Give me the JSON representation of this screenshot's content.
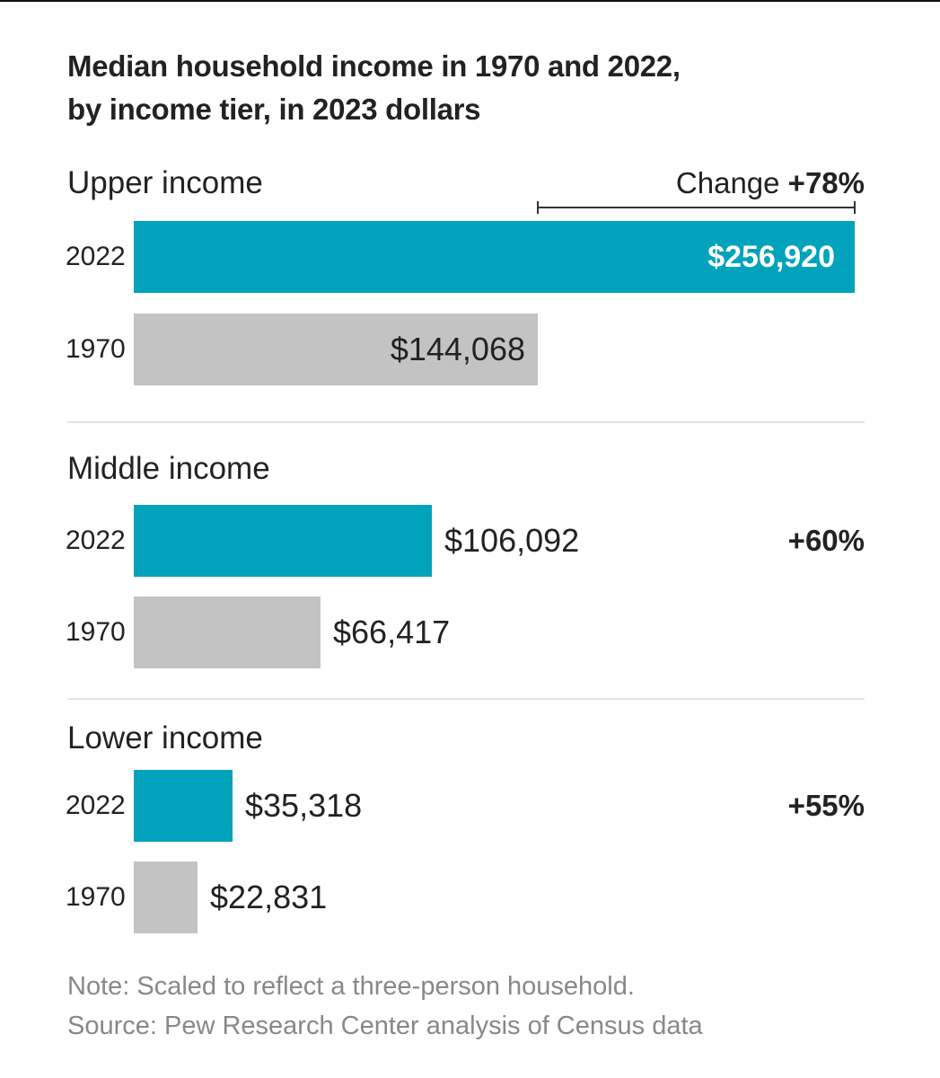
{
  "chart_data": {
    "type": "bar",
    "orientation": "horizontal",
    "title": "Median household income in 1970 and 2022,",
    "subtitle": "by income tier, in 2023 dollars",
    "change_heading": "Change",
    "groups": [
      {
        "name": "Upper income",
        "change": "+78%",
        "bars": [
          {
            "year": "2022",
            "value": 256920,
            "label": "$256,920"
          },
          {
            "year": "1970",
            "value": 144068,
            "label": "$144,068"
          }
        ]
      },
      {
        "name": "Middle income",
        "change": "+60%",
        "bars": [
          {
            "year": "2022",
            "value": 106092,
            "label": "$106,092"
          },
          {
            "year": "1970",
            "value": 66417,
            "label": "$66,417"
          }
        ]
      },
      {
        "name": "Lower income",
        "change": "+55%",
        "bars": [
          {
            "year": "2022",
            "value": 35318,
            "label": "$35,318"
          },
          {
            "year": "1970",
            "value": 22831,
            "label": "$22,831"
          }
        ]
      }
    ],
    "colors": {
      "2022": "#00a3bb",
      "1970": "#c3c3c3"
    },
    "note": "Note: Scaled to reflect a three-person household.",
    "source": "Source: Pew Research Center analysis of Census data"
  }
}
